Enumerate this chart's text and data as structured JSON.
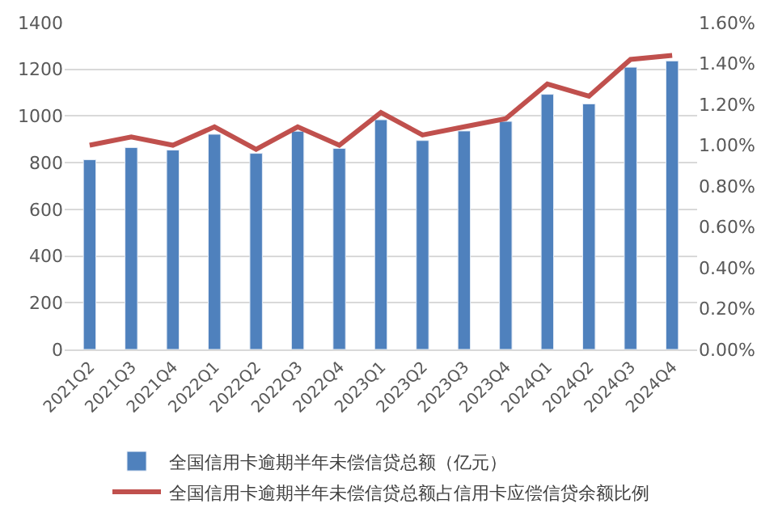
{
  "chart_data": {
    "type": "bar",
    "categories": [
      "2021Q2",
      "2021Q3",
      "2021Q4",
      "2022Q1",
      "2022Q2",
      "2022Q3",
      "2022Q4",
      "2023Q1",
      "2023Q2",
      "2023Q3",
      "2023Q4",
      "2024Q1",
      "2024Q2",
      "2024Q3",
      "2024Q4"
    ],
    "series": [
      {
        "name": "全国信用卡逾期半年未偿信贷总额（亿元）",
        "color": "#4f81bd",
        "values": [
          813,
          865,
          854,
          922,
          840,
          935,
          861,
          984,
          895,
          936,
          977,
          1093,
          1052,
          1209,
          1236
        ]
      },
      {
        "name": "全国信用卡逾期半年未偿信贷总额占信用卡应偿信贷余额比例",
        "type": "line",
        "axis": "y2",
        "color": "#c0504d",
        "values": [
          1.0,
          1.04,
          1.0,
          1.09,
          0.98,
          1.09,
          1.0,
          1.16,
          1.05,
          1.09,
          1.13,
          1.3,
          1.24,
          1.42,
          1.44
        ]
      }
    ],
    "ylim": [
      0,
      1400
    ],
    "yticks": [
      0,
      200,
      400,
      600,
      800,
      1000,
      1200,
      1400
    ],
    "y2lim": [
      0,
      1.6
    ],
    "y2ticks": [
      {
        "value": 0,
        "label": "0.00%"
      },
      {
        "value": 0.2,
        "label": "0.20%"
      },
      {
        "value": 0.4,
        "label": "0.40%"
      },
      {
        "value": 0.6,
        "label": "0.60%"
      },
      {
        "value": 0.8,
        "label": "0.80%"
      },
      {
        "value": 1.0,
        "label": "1.00%"
      },
      {
        "value": 1.2,
        "label": "1.20%"
      },
      {
        "value": 1.4,
        "label": "1.40%"
      },
      {
        "value": 1.6,
        "label": "1.60%"
      }
    ],
    "grid": "y",
    "legend": "bottom",
    "marker": "none",
    "line_style": "solid"
  }
}
